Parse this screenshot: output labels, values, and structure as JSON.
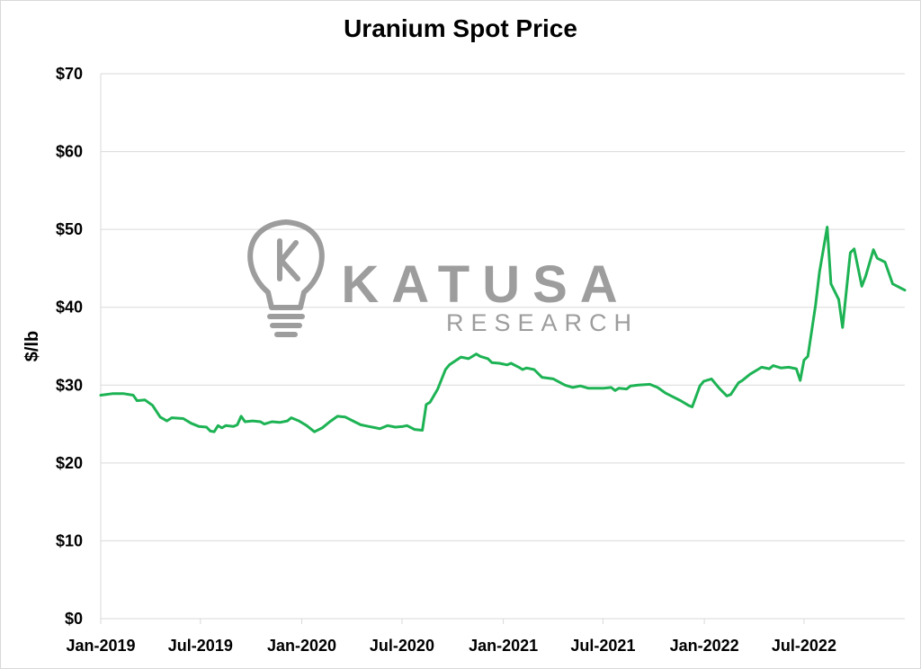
{
  "chart_data": {
    "type": "line",
    "title": "Uranium Spot Price",
    "xlabel": "",
    "ylabel": "$/lb",
    "ylim": [
      0,
      70
    ],
    "yticks": [
      0,
      10,
      20,
      30,
      40,
      50,
      60,
      70
    ],
    "ytick_labels": [
      "$0",
      "$10",
      "$20",
      "$30",
      "$40",
      "$50",
      "$60",
      "$70"
    ],
    "xlim": [
      "2019-01-01",
      "2022-12-31"
    ],
    "xticks": [
      "2019-01-01",
      "2019-07-01",
      "2020-01-01",
      "2020-07-01",
      "2021-01-01",
      "2021-07-01",
      "2022-01-01",
      "2022-07-01"
    ],
    "xtick_labels": [
      "Jan-2019",
      "Jul-2019",
      "Jan-2020",
      "Jul-2020",
      "Jan-2021",
      "Jul-2021",
      "Jan-2022",
      "Jul-2022"
    ],
    "grid": "horizontal",
    "legend": "none",
    "line_color": "#1db354",
    "watermark": {
      "brand": "KATUSA",
      "sub": "RESEARCH",
      "color": "#8c8c8c"
    },
    "series": [
      {
        "points": [
          [
            "2019-01-01",
            28.7
          ],
          [
            "2019-01-22",
            28.9
          ],
          [
            "2019-02-12",
            28.9
          ],
          [
            "2019-03-01",
            28.7
          ],
          [
            "2019-03-08",
            28.0
          ],
          [
            "2019-03-22",
            28.1
          ],
          [
            "2019-04-05",
            27.4
          ],
          [
            "2019-04-19",
            25.9
          ],
          [
            "2019-05-01",
            25.4
          ],
          [
            "2019-05-10",
            25.8
          ],
          [
            "2019-05-31",
            25.7
          ],
          [
            "2019-06-14",
            25.1
          ],
          [
            "2019-06-28",
            24.7
          ],
          [
            "2019-07-12",
            24.6
          ],
          [
            "2019-07-19",
            24.1
          ],
          [
            "2019-07-26",
            24.0
          ],
          [
            "2019-08-02",
            24.8
          ],
          [
            "2019-08-09",
            24.5
          ],
          [
            "2019-08-16",
            24.8
          ],
          [
            "2019-08-30",
            24.7
          ],
          [
            "2019-09-06",
            24.9
          ],
          [
            "2019-09-13",
            26.0
          ],
          [
            "2019-09-20",
            25.3
          ],
          [
            "2019-10-04",
            25.4
          ],
          [
            "2019-10-18",
            25.3
          ],
          [
            "2019-10-25",
            25.0
          ],
          [
            "2019-11-08",
            25.3
          ],
          [
            "2019-11-22",
            25.2
          ],
          [
            "2019-12-06",
            25.4
          ],
          [
            "2019-12-13",
            25.8
          ],
          [
            "2019-12-27",
            25.4
          ],
          [
            "2020-01-10",
            24.8
          ],
          [
            "2020-01-24",
            24.0
          ],
          [
            "2020-02-07",
            24.5
          ],
          [
            "2020-02-21",
            25.3
          ],
          [
            "2020-03-06",
            26.0
          ],
          [
            "2020-03-20",
            25.9
          ],
          [
            "2020-04-03",
            25.4
          ],
          [
            "2020-04-17",
            24.9
          ],
          [
            "2020-05-01",
            24.7
          ],
          [
            "2020-05-15",
            24.5
          ],
          [
            "2020-05-22",
            24.4
          ],
          [
            "2020-06-05",
            24.8
          ],
          [
            "2020-06-19",
            24.6
          ],
          [
            "2020-07-03",
            24.7
          ],
          [
            "2020-07-10",
            24.8
          ],
          [
            "2020-07-24",
            24.3
          ],
          [
            "2020-08-07",
            24.2
          ],
          [
            "2020-08-14",
            27.5
          ],
          [
            "2020-08-21",
            27.8
          ],
          [
            "2020-09-04",
            29.5
          ],
          [
            "2020-09-18",
            32.0
          ],
          [
            "2020-09-25",
            32.6
          ],
          [
            "2020-10-16",
            33.6
          ],
          [
            "2020-10-30",
            33.4
          ],
          [
            "2020-11-13",
            34.0
          ],
          [
            "2020-11-20",
            33.7
          ],
          [
            "2020-12-04",
            33.4
          ],
          [
            "2020-12-11",
            32.9
          ],
          [
            "2020-12-25",
            32.8
          ],
          [
            "2021-01-08",
            32.6
          ],
          [
            "2021-01-15",
            32.8
          ],
          [
            "2021-01-29",
            32.3
          ],
          [
            "2021-02-05",
            32.0
          ],
          [
            "2021-02-12",
            32.2
          ],
          [
            "2021-02-26",
            32.0
          ],
          [
            "2021-03-12",
            31.0
          ],
          [
            "2021-04-02",
            30.8
          ],
          [
            "2021-04-23",
            30.0
          ],
          [
            "2021-05-07",
            29.7
          ],
          [
            "2021-05-21",
            29.9
          ],
          [
            "2021-06-04",
            29.6
          ],
          [
            "2021-06-25",
            29.6
          ],
          [
            "2021-07-02",
            29.6
          ],
          [
            "2021-07-16",
            29.7
          ],
          [
            "2021-07-23",
            29.3
          ],
          [
            "2021-07-30",
            29.6
          ],
          [
            "2021-08-13",
            29.5
          ],
          [
            "2021-08-20",
            29.9
          ],
          [
            "2021-09-03",
            30.0
          ],
          [
            "2021-09-24",
            30.1
          ],
          [
            "2021-10-08",
            29.7
          ],
          [
            "2021-10-22",
            29.0
          ],
          [
            "2021-11-05",
            28.5
          ],
          [
            "2021-11-19",
            28.0
          ],
          [
            "2021-12-03",
            27.4
          ],
          [
            "2021-12-10",
            27.2
          ],
          [
            "2021-12-24",
            29.9
          ],
          [
            "2021-12-31",
            30.5
          ],
          [
            "2022-01-14",
            30.8
          ],
          [
            "2022-01-28",
            29.6
          ],
          [
            "2022-02-11",
            28.6
          ],
          [
            "2022-02-18",
            28.8
          ],
          [
            "2022-03-04",
            30.3
          ],
          [
            "2022-03-11",
            30.6
          ],
          [
            "2022-03-25",
            31.4
          ],
          [
            "2022-04-08",
            32.0
          ],
          [
            "2022-04-15",
            32.3
          ],
          [
            "2022-04-29",
            32.1
          ],
          [
            "2022-05-06",
            32.5
          ],
          [
            "2022-05-20",
            32.2
          ],
          [
            "2022-06-03",
            32.3
          ],
          [
            "2022-06-17",
            32.1
          ],
          [
            "2022-06-24",
            30.6
          ],
          [
            "2022-07-01",
            33.2
          ],
          [
            "2022-07-08",
            33.7
          ],
          [
            "2022-07-22",
            40.3
          ],
          [
            "2022-07-29",
            44.5
          ],
          [
            "2022-08-12",
            50.3
          ],
          [
            "2022-08-19",
            43.0
          ],
          [
            "2022-09-02",
            41.0
          ],
          [
            "2022-09-09",
            37.4
          ],
          [
            "2022-09-23",
            47.0
          ],
          [
            "2022-09-30",
            47.5
          ],
          [
            "2022-10-14",
            42.7
          ],
          [
            "2022-10-21",
            44.0
          ],
          [
            "2022-11-04",
            47.4
          ],
          [
            "2022-11-11",
            46.3
          ],
          [
            "2022-11-25",
            45.8
          ],
          [
            "2022-12-09",
            43.0
          ],
          [
            "2022-12-31",
            42.2
          ]
        ]
      }
    ]
  }
}
